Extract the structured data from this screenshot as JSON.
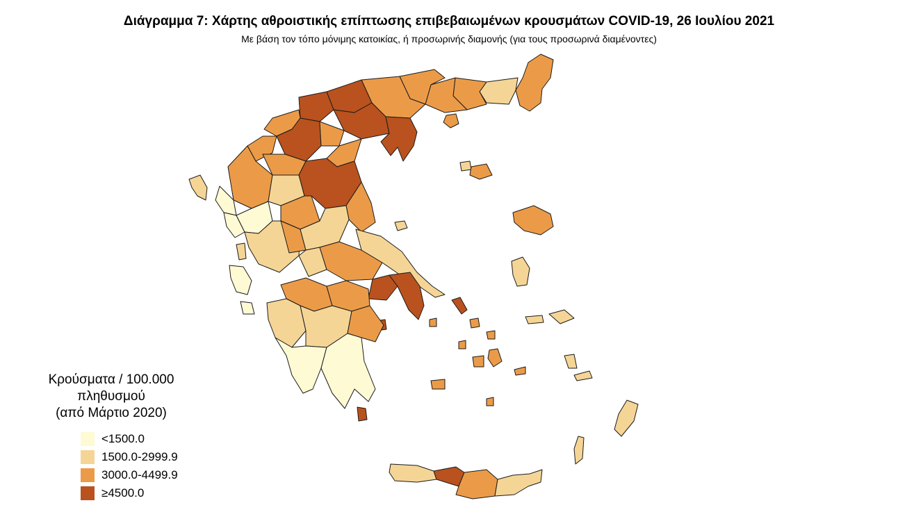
{
  "title": "Διάγραμμα 7: Χάρτης αθροιστικής επίπτωσης επιβεβαιωμένων κρουσμάτων COVID-19, 26 Ιουλίου 2021",
  "subtitle": "Με βάση τον τόπο μόνιμης κατοικίας, ή προσωρινής διαμονής (για τους προσωρινά διαμένοντες)",
  "legend": {
    "title_line1": "Κρούσματα / 100.000 πληθυσμού",
    "title_line2": "(από Μάρτιο 2020)",
    "classes": [
      {
        "label": "<1500.0",
        "color": "#fefad4"
      },
      {
        "label": "1500.0-2999.9",
        "color": "#f5d596"
      },
      {
        "label": "3000.0-4499.9",
        "color": "#eb9b48"
      },
      {
        "label": "≥4500.0",
        "color": "#b9521e"
      }
    ]
  }
}
